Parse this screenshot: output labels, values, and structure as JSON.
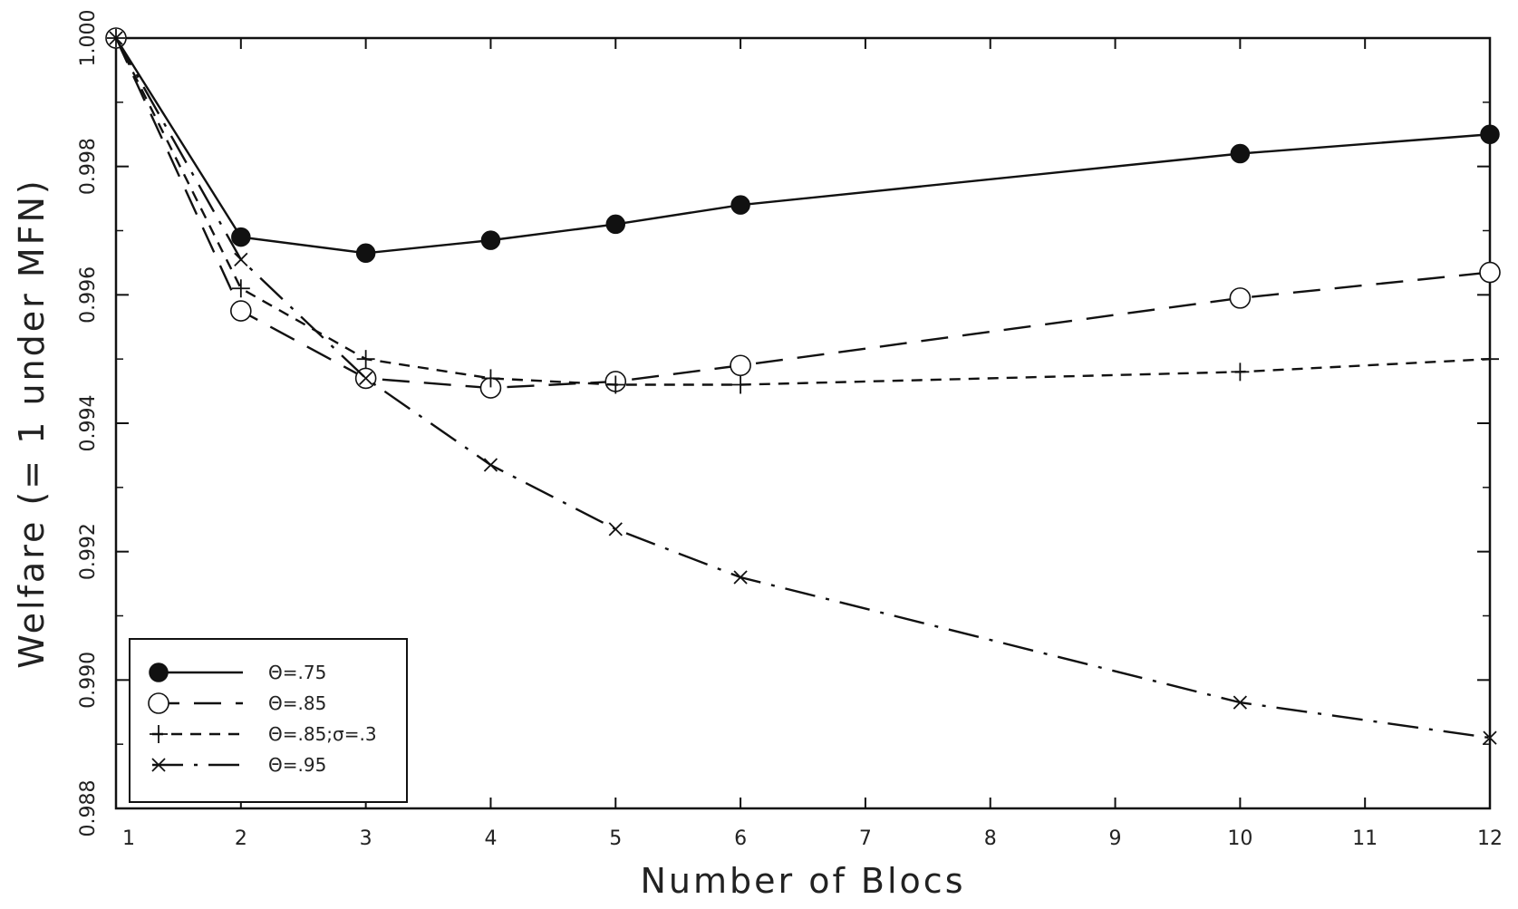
{
  "chart_data": {
    "type": "line",
    "title": "",
    "xlabel": "Number of Blocs",
    "ylabel": "Welfare (= 1 under MFN)",
    "x_ticks": [
      "1",
      "2",
      "3",
      "4",
      "5",
      "6",
      "7",
      "8",
      "9",
      "10",
      "11",
      "12"
    ],
    "y_ticks": [
      "0.988",
      "0.990",
      "0.992",
      "0.994",
      "0.996",
      "0.998",
      "1.000"
    ],
    "ylim": [
      0.988,
      1.0
    ],
    "grid": false,
    "legend_position": "bottom-left",
    "series": [
      {
        "name": "Θ=.75",
        "marker": "filled-circle",
        "line_style": "solid",
        "points": [
          {
            "x": "1",
            "y": 1.0
          },
          {
            "x": "2",
            "y": 0.9969
          },
          {
            "x": "3",
            "y": 0.99665
          },
          {
            "x": "4",
            "y": 0.99685
          },
          {
            "x": "5",
            "y": 0.9971
          },
          {
            "x": "6",
            "y": 0.9974
          },
          {
            "x": "10",
            "y": 0.9982
          },
          {
            "x": "12",
            "y": 0.9985
          }
        ]
      },
      {
        "name": "Θ=.85",
        "marker": "open-circle",
        "line_style": "long-dash",
        "points": [
          {
            "x": "1",
            "y": 1.0
          },
          {
            "x": "2",
            "y": 0.99575
          },
          {
            "x": "3",
            "y": 0.9947
          },
          {
            "x": "4",
            "y": 0.99455
          },
          {
            "x": "5",
            "y": 0.99465
          },
          {
            "x": "6",
            "y": 0.9949
          },
          {
            "x": "10",
            "y": 0.99595
          },
          {
            "x": "12",
            "y": 0.99635
          }
        ]
      },
      {
        "name": "Θ=.85;σ=.3",
        "marker": "plus",
        "line_style": "short-dash",
        "points": [
          {
            "x": "1",
            "y": 1.0
          },
          {
            "x": "2",
            "y": 0.9961
          },
          {
            "x": "3",
            "y": 0.995
          },
          {
            "x": "4",
            "y": 0.9947
          },
          {
            "x": "5",
            "y": 0.9946
          },
          {
            "x": "6",
            "y": 0.9946
          },
          {
            "x": "10",
            "y": 0.9948
          },
          {
            "x": "12",
            "y": 0.995
          }
        ]
      },
      {
        "name": "Θ=.95",
        "marker": "cross",
        "line_style": "dash-dot",
        "points": [
          {
            "x": "1",
            "y": 1.0
          },
          {
            "x": "2",
            "y": 0.99655
          },
          {
            "x": "3",
            "y": 0.9947
          },
          {
            "x": "4",
            "y": 0.99335
          },
          {
            "x": "5",
            "y": 0.99235
          },
          {
            "x": "6",
            "y": 0.9916
          },
          {
            "x": "10",
            "y": 0.98965
          },
          {
            "x": "12",
            "y": 0.9891
          }
        ]
      }
    ]
  }
}
